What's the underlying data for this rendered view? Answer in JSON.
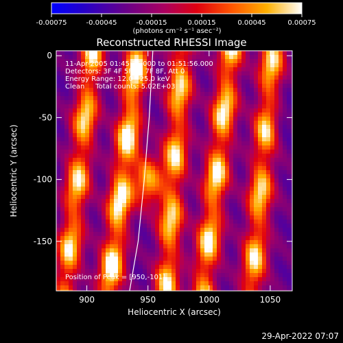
{
  "chart_data": {
    "type": "heatmap",
    "title": "Reconstructed RHESSI Image",
    "xlabel": "Heliocentric X (arcsec)",
    "ylabel": "Heliocentric Y (arcsec)",
    "xlim": [
      875,
      1068
    ],
    "ylim": [
      -190,
      4
    ],
    "xticks": [
      900,
      950,
      1000,
      1050
    ],
    "yticks": [
      0,
      -50,
      -100,
      -150
    ],
    "colorbar": {
      "range": [
        -0.00075,
        0.00075
      ],
      "ticks": [
        "-0.00075",
        "-0.00045",
        "-0.00015",
        "0.00015",
        "0.00045",
        "0.00075"
      ],
      "unit_label": "(photons cm⁻² s⁻¹ asec⁻²)"
    },
    "annotations": [
      "11-Apr-2005 01:45:56.000 to 01:51:56.000",
      "Detectors: 3F 4F 5F 6F 7F 8F, Att 0",
      "Energy Range: 12.0 - 25.0 keV",
      "Clean     Total counts: 5.02E+03"
    ],
    "peak": {
      "label": "Position of Peak = [950,-101]",
      "x": 950,
      "y": -101
    },
    "limb_curve": [
      [
        935,
        -190
      ],
      [
        942,
        -150
      ],
      [
        947,
        -100
      ],
      [
        951,
        -50
      ],
      [
        954,
        4
      ]
    ],
    "bright_ridges": [
      {
        "x_top": 905,
        "x_bottom": 882,
        "strength": 0.7
      },
      {
        "x_top": 942,
        "x_bottom": 918,
        "strength": 0.8
      },
      {
        "x_top": 978,
        "x_bottom": 965,
        "strength": 0.7
      },
      {
        "x_top": 1018,
        "x_bottom": 995,
        "strength": 0.75
      },
      {
        "x_top": 1052,
        "x_bottom": 1035,
        "strength": 0.7
      }
    ],
    "grid": false
  },
  "footer": {
    "timestamp": "29-Apr-2022 07:07"
  }
}
